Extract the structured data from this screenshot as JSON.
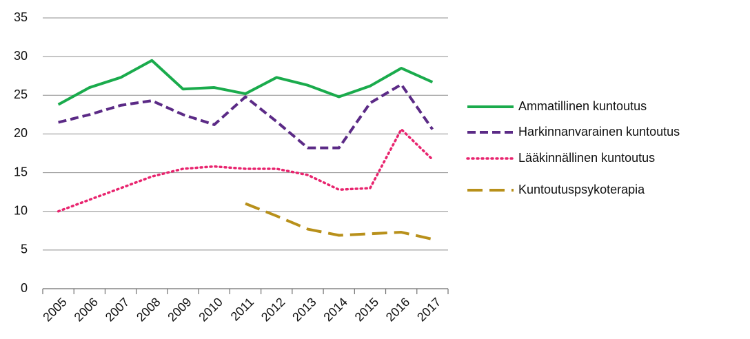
{
  "chart_data": {
    "type": "line",
    "categories": [
      "2005",
      "2006",
      "2007",
      "2008",
      "2009",
      "2010",
      "2011",
      "2012",
      "2013",
      "2014",
      "2015",
      "2016",
      "2017"
    ],
    "series": [
      {
        "name": "Ammatillinen kuntoutus",
        "color": "#1aab4c",
        "line_style": "solid",
        "values": [
          23.8,
          26,
          27.3,
          29.5,
          25.8,
          26,
          25.2,
          27.3,
          26.3,
          24.8,
          26.2,
          28.5,
          26.7
        ]
      },
      {
        "name": "Harkinnanvarainen kuntoutus",
        "color": "#5b2a86",
        "line_style": "dashed",
        "values": [
          21.5,
          22.5,
          23.7,
          24.3,
          22.5,
          21.2,
          24.8,
          21.6,
          18.2,
          18.2,
          24,
          26.4,
          20.6
        ]
      },
      {
        "name": "Lääkinnällinen kuntoutus",
        "color": "#e8246e",
        "line_style": "dotted",
        "values": [
          10,
          11.5,
          13,
          14.5,
          15.5,
          15.8,
          15.5,
          15.5,
          14.7,
          12.8,
          13,
          20.6,
          16.7
        ]
      },
      {
        "name": "Kuntoutuspsykoterapia",
        "color": "#b8901a",
        "line_style": "longdash",
        "values": [
          null,
          null,
          null,
          null,
          null,
          null,
          11,
          9.4,
          7.7,
          6.9,
          7.1,
          7.3,
          6.4
        ]
      }
    ],
    "ylim": [
      0,
      35
    ],
    "yticks": [
      0,
      5,
      10,
      15,
      20,
      25,
      30,
      35
    ],
    "grid": true,
    "legend": "right"
  }
}
